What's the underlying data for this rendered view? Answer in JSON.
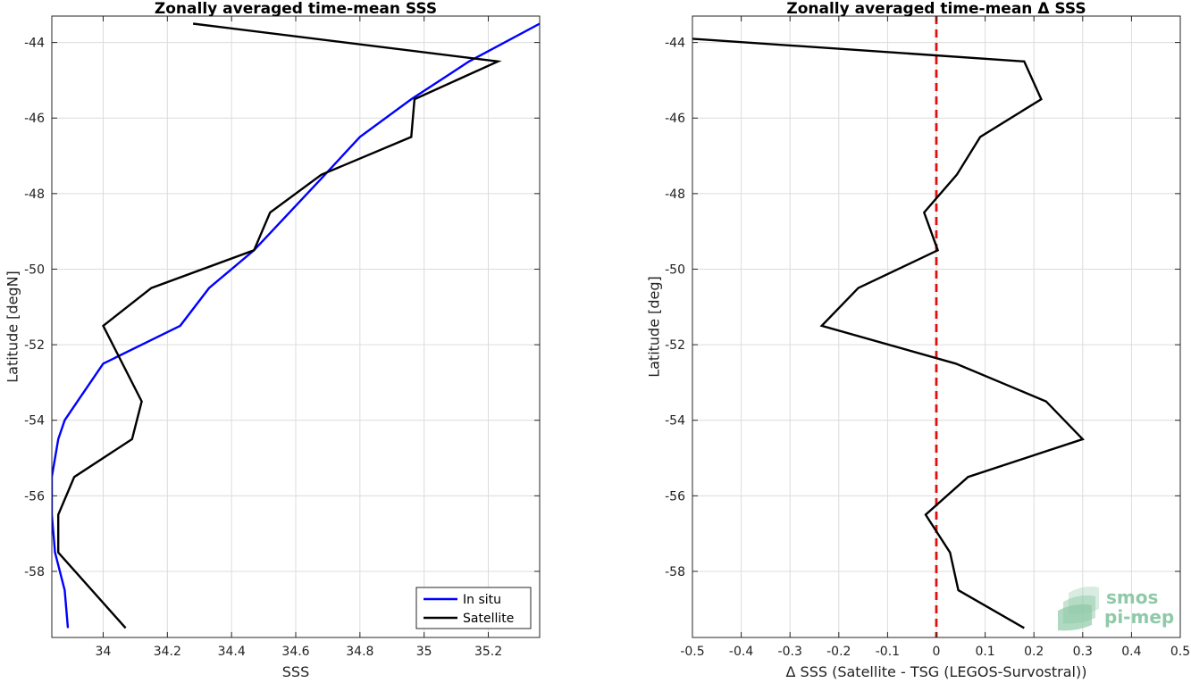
{
  "chart_data": [
    {
      "type": "line",
      "title": "Zonally averaged time-mean SSS",
      "xlabel": "SSS",
      "ylabel": "Latitude [degN]",
      "xlim": [
        33.84,
        35.36
      ],
      "ylim": [
        -59.75,
        -43.3
      ],
      "xticks": [
        34,
        34.2,
        34.4,
        34.6,
        34.8,
        35,
        35.2
      ],
      "yticks": [
        -58,
        -56,
        -54,
        -52,
        -50,
        -48,
        -46,
        -44
      ],
      "grid": true,
      "legend_position": "bottom-right",
      "series": [
        {
          "name": "In situ",
          "color": "#0000ff",
          "x": [
            33.89,
            33.88,
            33.85,
            33.84,
            33.84,
            33.86,
            33.88,
            33.92,
            34.0,
            34.24,
            34.33,
            34.47,
            34.68,
            34.8,
            34.96,
            35.14,
            35.36
          ],
          "y": [
            -59.5,
            -58.5,
            -57.5,
            -56.5,
            -55.5,
            -54.5,
            -54.0,
            -53.5,
            -52.5,
            -51.5,
            -50.5,
            -49.5,
            -47.6,
            -46.5,
            -45.5,
            -44.5,
            -43.5
          ]
        },
        {
          "name": "Satellite",
          "color": "#000000",
          "x": [
            34.07,
            33.86,
            33.86,
            33.91,
            34.09,
            34.12,
            34.0,
            34.15,
            34.47,
            34.52,
            34.68,
            34.96,
            34.97,
            35.23,
            34.28
          ],
          "y": [
            -59.5,
            -57.5,
            -56.5,
            -55.5,
            -54.5,
            -53.5,
            -51.5,
            -50.5,
            -49.5,
            -48.5,
            -47.5,
            -46.5,
            -45.5,
            -44.5,
            -43.5
          ]
        }
      ]
    },
    {
      "type": "line",
      "title": "Zonally averaged time-mean Δ SSS",
      "xlabel": "Δ SSS (Satellite - TSG (LEGOS-Survostral))",
      "ylabel": "Latitude [deg]",
      "xlim": [
        -0.5,
        0.5
      ],
      "ylim": [
        -59.75,
        -43.3
      ],
      "xticks": [
        -0.5,
        -0.4,
        -0.3,
        -0.2,
        -0.1,
        0,
        0.1,
        0.2,
        0.3,
        0.4,
        0.5
      ],
      "yticks": [
        -58,
        -56,
        -54,
        -52,
        -50,
        -48,
        -46,
        -44
      ],
      "grid": true,
      "reference_line": {
        "x": 0,
        "color": "#e01010",
        "style": "dashed"
      },
      "series": [
        {
          "name": "",
          "color": "#000000",
          "x": [
            0.18,
            0.045,
            0.028,
            -0.022,
            0.065,
            0.3,
            0.225,
            0.04,
            -0.235,
            -0.16,
            0.003,
            -0.025,
            0.042,
            0.09,
            0.215,
            0.18,
            -0.5
          ],
          "y": [
            -59.5,
            -58.5,
            -57.5,
            -56.5,
            -55.5,
            -54.5,
            -53.5,
            -52.5,
            -51.5,
            -50.5,
            -49.5,
            -48.5,
            -47.5,
            -46.5,
            -45.5,
            -44.5,
            -43.9
          ]
        }
      ]
    }
  ],
  "logo": {
    "line1": "smos",
    "line2": "pi-mep",
    "color": "#8fc9a8"
  }
}
